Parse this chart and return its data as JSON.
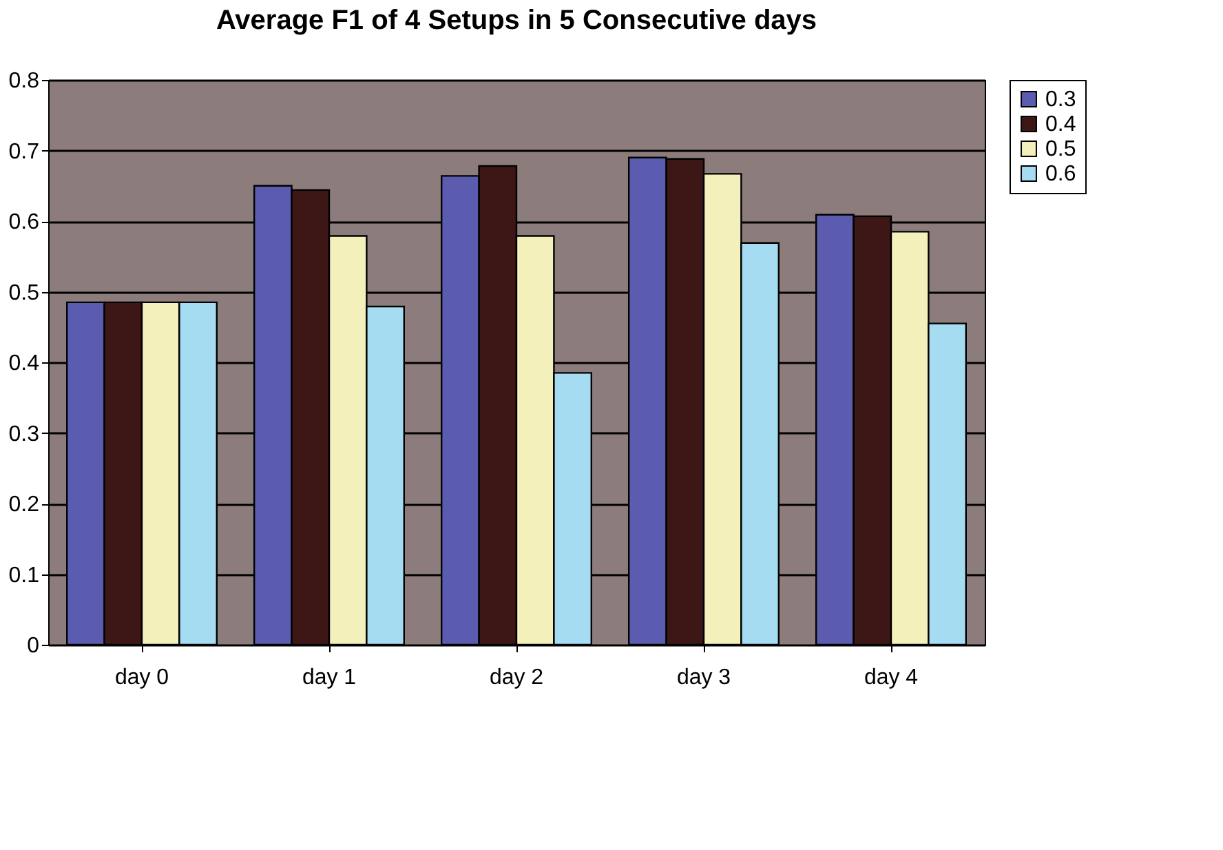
{
  "chart_data": {
    "type": "bar",
    "title": "Average F1 of 4 Setups in 5 Consecutive  days",
    "categories": [
      "day 0",
      "day 1",
      "day 2",
      "day 3",
      "day 4"
    ],
    "series": [
      {
        "name": "0.3",
        "color": "#5b5cb0",
        "values": [
          0.485,
          0.65,
          0.664,
          0.69,
          0.609
        ]
      },
      {
        "name": "0.4",
        "color": "#3d1616",
        "values": [
          0.485,
          0.644,
          0.678,
          0.688,
          0.607
        ]
      },
      {
        "name": "0.5",
        "color": "#f4f0bc",
        "values": [
          0.485,
          0.579,
          0.579,
          0.667,
          0.585
        ]
      },
      {
        "name": "0.6",
        "color": "#a6dcf2",
        "values": [
          0.485,
          0.479,
          0.385,
          0.569,
          0.455
        ]
      }
    ],
    "ylim": [
      0,
      0.8
    ],
    "yticks": [
      0,
      0.1,
      0.2,
      0.3,
      0.4,
      0.5,
      0.6,
      0.7,
      0.8
    ],
    "grid": "y",
    "legend": "right"
  }
}
